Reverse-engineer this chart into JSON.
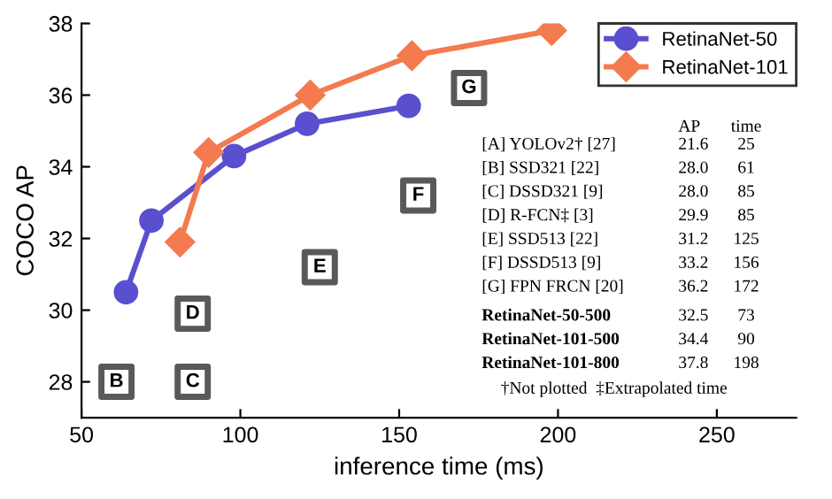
{
  "chart_data": {
    "type": "line",
    "xlabel": "inference time (ms)",
    "ylabel": "COCO AP",
    "xlim": [
      50,
      275
    ],
    "xticks": [
      50,
      100,
      150,
      200,
      250
    ],
    "ylim": [
      27,
      38
    ],
    "yticks": [
      28,
      30,
      32,
      34,
      36,
      38
    ],
    "grid": false,
    "legend": "top right",
    "line_style": "solid",
    "series": [
      {
        "name": "RetinaNet-50",
        "color": "#5a4fcf",
        "marker": "circle",
        "x": [
          64,
          72,
          98,
          121,
          153
        ],
        "values": [
          30.5,
          32.5,
          34.3,
          35.2,
          35.7
        ]
      },
      {
        "name": "RetinaNet-101",
        "color": "#f47a50",
        "marker": "diamond",
        "x": [
          81,
          90,
          122,
          154,
          198
        ],
        "values": [
          31.9,
          34.4,
          36.0,
          37.1,
          37.8
        ]
      },
      {
        "type": "scatter",
        "color": "#595959",
        "marker": "square",
        "x": [
          61,
          85,
          85,
          125,
          156,
          172
        ],
        "values": [
          28.0,
          28.0,
          29.9,
          31.2,
          33.2,
          36.2
        ],
        "value_labels": [
          "B",
          "C",
          "D",
          "E",
          "F",
          "G"
        ]
      }
    ],
    "annotations": [
      "AP",
      "time",
      "[A] YOLOv2† [27]",
      "21.6",
      "25",
      "[B] SSD321 [22]",
      "28.0",
      "61",
      "[C] DSSD321 [9]",
      "28.0",
      "85",
      "[D] R-FCN‡ [3]",
      "29.9",
      "85",
      "[E] SSD513 [22]",
      "31.2",
      "125",
      "[F] DSSD513 [9]",
      "33.2",
      "156",
      "[G] FPN FRCN [20]",
      "36.2",
      "172",
      "RetinaNet-50-500",
      "32.5",
      "73",
      "RetinaNet-101-500",
      "34.4",
      "90",
      "RetinaNet-101-800",
      "37.8",
      "198",
      "†Not plotted  ‡Extrapolated time"
    ]
  }
}
